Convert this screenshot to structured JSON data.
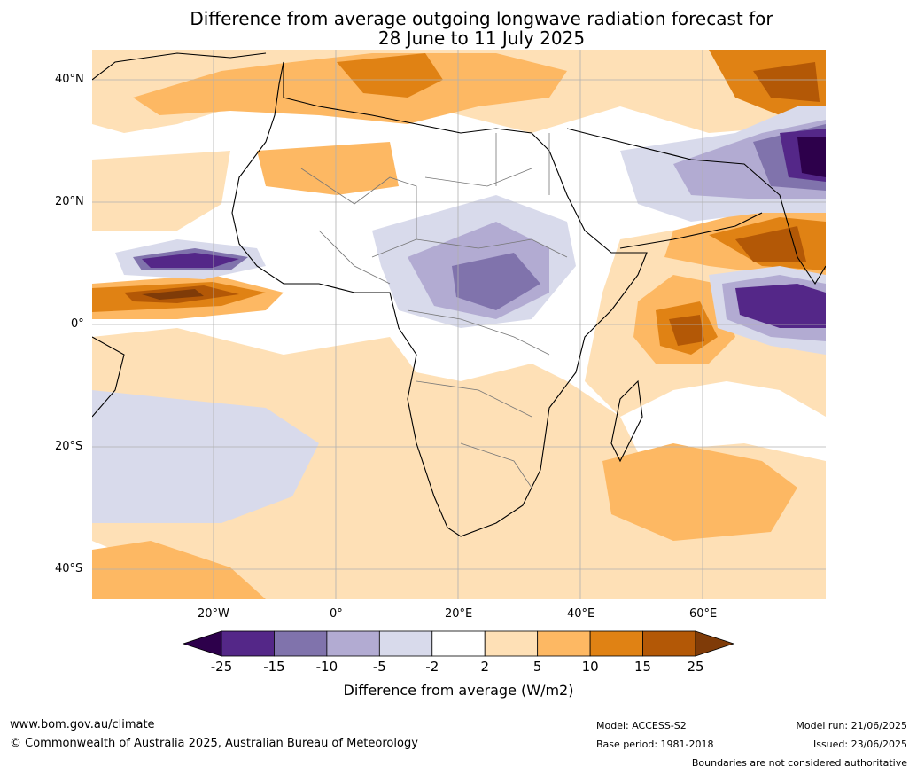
{
  "title": {
    "line1": "Difference from average outgoing longwave radiation forecast for",
    "line2": "28 June to 11 July 2025"
  },
  "map": {
    "lat_labels": [
      "40°N",
      "20°N",
      "0°",
      "20°S",
      "40°S"
    ],
    "lon_labels": [
      "20°W",
      "0°",
      "20°E",
      "40°E",
      "60°E"
    ]
  },
  "legend": {
    "ticks": [
      "-25",
      "-15",
      "-10",
      "-5",
      "-2",
      "2",
      "5",
      "10",
      "15",
      "25"
    ],
    "colors": [
      "#2d004b",
      "#542788",
      "#8073ac",
      "#b2abd2",
      "#d8daeb",
      "#ffffff",
      "#fee0b6",
      "#fdb863",
      "#e08214",
      "#b35806",
      "#7f3b08"
    ],
    "label": "Difference from average (W/m2)"
  },
  "footer": {
    "website": "www.bom.gov.au/climate",
    "copyright": "© Commonwealth of Australia 2025, Australian Bureau of Meteorology",
    "model": "Model: ACCESS-S2",
    "base_period": "Base period: 1981-2018",
    "model_run": "Model run: 21/06/2025",
    "issued": "Issued: 23/06/2025",
    "disclaimer": "Boundaries are not considered authoritative"
  }
}
